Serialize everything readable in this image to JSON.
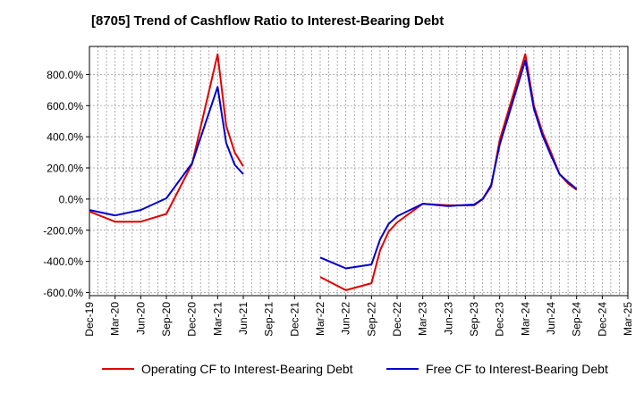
{
  "title": "[8705]  Trend of Cashflow Ratio to Interest-Bearing Debt",
  "legend": {
    "series0": "Operating CF to Interest-Bearing Debt",
    "series1": "Free CF to Interest-Bearing Debt"
  },
  "colors": {
    "series0": "#e00000",
    "series1": "#0000cc"
  },
  "chart_data": {
    "type": "line",
    "title": "[8705]  Trend of Cashflow Ratio to Interest-Bearing Debt",
    "xlabel": "",
    "ylabel": "",
    "x_tick_labels": [
      "Dec-19",
      "Mar-20",
      "Jun-20",
      "Sep-20",
      "Dec-20",
      "Mar-21",
      "Jun-21",
      "Sep-21",
      "Dec-21",
      "Mar-22",
      "Jun-22",
      "Sep-22",
      "Dec-22",
      "Mar-23",
      "Jun-23",
      "Sep-23",
      "Dec-23",
      "Mar-24",
      "Jun-24",
      "Sep-24",
      "Dec-24",
      "Mar-25"
    ],
    "y_tick_labels": [
      "800.0%",
      "600.0%",
      "400.0%",
      "200.0%",
      "0.0%",
      "-200.0%",
      "-400.0%",
      "-600.0%"
    ],
    "y_ticks": [
      800,
      600,
      400,
      200,
      0,
      -200,
      -400,
      -600
    ],
    "ylim": [
      -620,
      980
    ],
    "grid": true,
    "legend_position": "bottom",
    "x": [
      "2019-12",
      "2020-01",
      "2020-02",
      "2020-03",
      "2020-04",
      "2020-05",
      "2020-06",
      "2020-07",
      "2020-08",
      "2020-09",
      "2020-10",
      "2020-11",
      "2020-12",
      "2021-01",
      "2021-02",
      "2021-03",
      "2021-04",
      "2021-05",
      "2021-06",
      "2021-07",
      "2021-08",
      "2021-09",
      "2021-10",
      "2021-11",
      "2021-12",
      "2022-01",
      "2022-02",
      "2022-03",
      "2022-04",
      "2022-05",
      "2022-06",
      "2022-07",
      "2022-08",
      "2022-09",
      "2022-10",
      "2022-11",
      "2022-12",
      "2023-01",
      "2023-02",
      "2023-03",
      "2023-04",
      "2023-05",
      "2023-06",
      "2023-07",
      "2023-08",
      "2023-09",
      "2023-10",
      "2023-11",
      "2023-12",
      "2024-01",
      "2024-02",
      "2024-03",
      "2024-04",
      "2024-05",
      "2024-06",
      "2024-07",
      "2024-08",
      "2024-09",
      "2024-10",
      "2024-11",
      "2024-12",
      "2025-01",
      "2025-02",
      "2025-03"
    ],
    "series": [
      {
        "name": "Operating CF to Interest-Bearing Debt",
        "color": "#e00000",
        "values": [
          -80,
          null,
          null,
          -145,
          null,
          null,
          -145,
          null,
          null,
          -95,
          null,
          null,
          225,
          null,
          null,
          930,
          470,
          300,
          210,
          null,
          null,
          null,
          null,
          null,
          null,
          null,
          null,
          -500,
          null,
          null,
          -585,
          null,
          null,
          -540,
          -330,
          -210,
          -150,
          null,
          null,
          -30,
          null,
          null,
          -40,
          null,
          null,
          -40,
          0,
          80,
          380,
          null,
          null,
          930,
          600,
          430,
          300,
          160,
          100,
          60,
          null,
          null,
          null,
          null,
          null,
          null
        ]
      },
      {
        "name": "Free CF to Interest-Bearing Debt",
        "color": "#0000cc",
        "values": [
          -70,
          null,
          null,
          -105,
          null,
          null,
          -70,
          null,
          null,
          5,
          null,
          null,
          230,
          null,
          null,
          720,
          360,
          220,
          160,
          null,
          null,
          null,
          null,
          null,
          null,
          null,
          null,
          -375,
          null,
          null,
          -445,
          null,
          null,
          -420,
          -260,
          -160,
          -110,
          null,
          null,
          -30,
          null,
          null,
          -45,
          null,
          null,
          -35,
          0,
          90,
          350,
          null,
          null,
          890,
          580,
          410,
          280,
          160,
          110,
          65,
          null,
          null,
          null,
          null,
          null,
          null
        ]
      }
    ]
  }
}
